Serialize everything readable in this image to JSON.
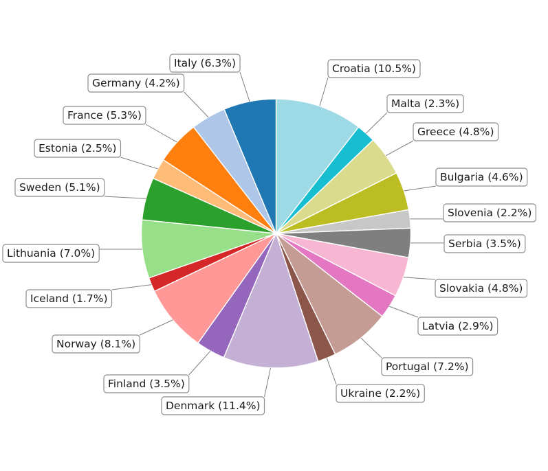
{
  "chart_data": {
    "type": "pie",
    "start_angle_deg": 90,
    "direction": "clockwise",
    "slices": [
      {
        "label": "Croatia",
        "value": 10.5,
        "pct_label": "Croatia (10.5%)",
        "color": "#9edae5"
      },
      {
        "label": "Malta",
        "value": 2.3,
        "pct_label": "Malta (2.3%)",
        "color": "#17becf"
      },
      {
        "label": "Greece",
        "value": 4.8,
        "pct_label": "Greece (4.8%)",
        "color": "#dbdb8d"
      },
      {
        "label": "Bulgaria",
        "value": 4.6,
        "pct_label": "Bulgaria (4.6%)",
        "color": "#bcbd22"
      },
      {
        "label": "Slovenia",
        "value": 2.2,
        "pct_label": "Slovenia (2.2%)",
        "color": "#c7c7c7"
      },
      {
        "label": "Serbia",
        "value": 3.5,
        "pct_label": "Serbia (3.5%)",
        "color": "#7f7f7f"
      },
      {
        "label": "Slovakia",
        "value": 4.8,
        "pct_label": "Slovakia (4.8%)",
        "color": "#f7b6d2"
      },
      {
        "label": "Latvia",
        "value": 2.9,
        "pct_label": "Latvia (2.9%)",
        "color": "#e377c2"
      },
      {
        "label": "Portugal",
        "value": 7.2,
        "pct_label": "Portugal (7.2%)",
        "color": "#c49c94"
      },
      {
        "label": "Ukraine",
        "value": 2.2,
        "pct_label": "Ukraine (2.2%)",
        "color": "#8c564b"
      },
      {
        "label": "Denmark",
        "value": 11.4,
        "pct_label": "Denmark (11.4%)",
        "color": "#c5b0d5"
      },
      {
        "label": "Finland",
        "value": 3.5,
        "pct_label": "Finland (3.5%)",
        "color": "#9467bd"
      },
      {
        "label": "Norway",
        "value": 8.1,
        "pct_label": "Norway (8.1%)",
        "color": "#ff9896"
      },
      {
        "label": "Iceland",
        "value": 1.7,
        "pct_label": "Iceland (1.7%)",
        "color": "#d62728"
      },
      {
        "label": "Lithuania",
        "value": 7.0,
        "pct_label": "Lithuania (7.0%)",
        "color": "#98df8a"
      },
      {
        "label": "Sweden",
        "value": 5.1,
        "pct_label": "Sweden (5.1%)",
        "color": "#2ca02c"
      },
      {
        "label": "Estonia",
        "value": 2.5,
        "pct_label": "Estonia (2.5%)",
        "color": "#ffbb78"
      },
      {
        "label": "France",
        "value": 5.3,
        "pct_label": "France (5.3%)",
        "color": "#ff7f0e"
      },
      {
        "label": "Germany",
        "value": 4.2,
        "pct_label": "Germany (4.2%)",
        "color": "#aec7e8"
      },
      {
        "label": "Italy",
        "value": 6.3,
        "pct_label": "Italy (6.3%)",
        "color": "#1f77b4"
      }
    ]
  }
}
